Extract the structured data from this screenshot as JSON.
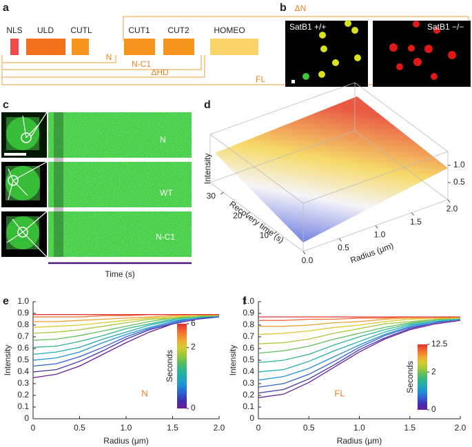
{
  "panel_labels": [
    "a",
    "b",
    "c",
    "d",
    "e",
    "f"
  ],
  "domain_map": {
    "domains": [
      "NLS",
      "ULD",
      "CUTL",
      "CUT1",
      "CUT2",
      "HOMEO"
    ],
    "constructs": [
      "ΔN",
      "N",
      "N-C1",
      "ΔHD",
      "FL"
    ]
  },
  "micrographs": {
    "titles": [
      "SatB1 +/+",
      "SatB1 −/−"
    ]
  },
  "kymographs": {
    "rows": [
      "N",
      "WT",
      "N-C1"
    ],
    "xlabel": "Time (s)"
  },
  "chart_data": [
    {
      "type": "surface3d",
      "xlabel": "Radius (μm)",
      "ylabel": "Recovery time (s)",
      "zlabel": "Intensity",
      "xlim": [
        0,
        2
      ],
      "xticks": [
        {
          "value": 0,
          "label": "0.0"
        },
        0.5,
        {
          "value": 1,
          "label": "1.0"
        },
        1.5,
        {
          "value": 2,
          "label": "2.0"
        }
      ],
      "ylim": [
        0,
        35
      ],
      "yticks": [
        10,
        20,
        30
      ],
      "zlim": [
        0,
        1.4
      ],
      "zticks": [
        0.5,
        {
          "value": 1,
          "label": "1.0"
        }
      ]
    },
    {
      "type": "line",
      "xlabel": "Radius (μm)",
      "ylabel": "Intensity",
      "annotation": "N",
      "xlim": [
        0,
        2
      ],
      "xticks": [
        0,
        0.5,
        {
          "value": 1,
          "label": "1.0"
        },
        1.5,
        {
          "value": 2,
          "label": "2.0"
        }
      ],
      "ylim": [
        0,
        1
      ],
      "yticks": [
        0,
        0.1,
        0.2,
        0.3,
        0.4,
        0.5,
        0.6,
        0.7,
        0.8,
        0.9,
        {
          "value": 1,
          "label": "1.0"
        }
      ],
      "x": [
        0,
        0.25,
        0.5,
        0.75,
        1,
        1.25,
        1.5,
        1.75,
        2
      ],
      "series": [
        {
          "color": "#6a1b9a",
          "values": [
            0.35,
            0.38,
            0.45,
            0.55,
            0.65,
            0.74,
            0.81,
            0.85,
            0.87
          ]
        },
        {
          "color": "#4030b0",
          "values": [
            0.4,
            0.42,
            0.49,
            0.58,
            0.68,
            0.76,
            0.81,
            0.85,
            0.87
          ]
        },
        {
          "color": "#2f5fd0",
          "values": [
            0.45,
            0.47,
            0.53,
            0.61,
            0.7,
            0.77,
            0.82,
            0.86,
            0.87
          ]
        },
        {
          "color": "#1f8fd8",
          "values": [
            0.5,
            0.52,
            0.57,
            0.65,
            0.72,
            0.78,
            0.83,
            0.86,
            0.88
          ]
        },
        {
          "color": "#20aab8",
          "values": [
            0.55,
            0.57,
            0.61,
            0.68,
            0.74,
            0.8,
            0.84,
            0.86,
            0.88
          ]
        },
        {
          "color": "#2fb58a",
          "values": [
            0.61,
            0.62,
            0.66,
            0.71,
            0.77,
            0.81,
            0.85,
            0.87,
            0.88
          ]
        },
        {
          "color": "#5dbf5a",
          "values": [
            0.67,
            0.68,
            0.71,
            0.75,
            0.79,
            0.83,
            0.86,
            0.87,
            0.88
          ]
        },
        {
          "color": "#a6c83a",
          "values": [
            0.73,
            0.74,
            0.76,
            0.79,
            0.82,
            0.85,
            0.86,
            0.88,
            0.88
          ]
        },
        {
          "color": "#d9c92e",
          "values": [
            0.78,
            0.79,
            0.8,
            0.82,
            0.84,
            0.86,
            0.87,
            0.88,
            0.89
          ]
        },
        {
          "color": "#f0a030",
          "values": [
            0.83,
            0.83,
            0.84,
            0.85,
            0.86,
            0.87,
            0.88,
            0.89,
            0.89
          ]
        },
        {
          "color": "#f06a30",
          "values": [
            0.87,
            0.87,
            0.87,
            0.88,
            0.88,
            0.89,
            0.89,
            0.89,
            0.89
          ]
        },
        {
          "color": "#e03030",
          "values": [
            0.89,
            0.89,
            0.89,
            0.89,
            0.89,
            0.89,
            0.89,
            0.89,
            0.89
          ]
        }
      ],
      "colorbar": {
        "label": "Seconds",
        "ticks": [
          0,
          2,
          6
        ]
      }
    },
    {
      "type": "line",
      "xlabel": "Radius (μm)",
      "ylabel": "Intensity",
      "annotation": "FL",
      "xlim": [
        0,
        2
      ],
      "xticks": [
        0,
        0.5,
        {
          "value": 1,
          "label": "1.0"
        },
        1.5,
        {
          "value": 2,
          "label": "2.0"
        }
      ],
      "ylim": [
        0,
        1
      ],
      "yticks": [
        0,
        0.1,
        0.2,
        0.3,
        0.4,
        0.5,
        0.6,
        0.7,
        0.8,
        0.9,
        {
          "value": 1,
          "label": "1.0"
        }
      ],
      "x": [
        0,
        0.25,
        0.5,
        0.75,
        1,
        1.25,
        1.5,
        1.75,
        2
      ],
      "series": [
        {
          "color": "#6a1b9a",
          "values": [
            0.18,
            0.21,
            0.31,
            0.44,
            0.57,
            0.68,
            0.76,
            0.81,
            0.84
          ]
        },
        {
          "color": "#4030b0",
          "values": [
            0.22,
            0.25,
            0.34,
            0.46,
            0.59,
            0.69,
            0.77,
            0.82,
            0.85
          ]
        },
        {
          "color": "#2f5fd0",
          "values": [
            0.27,
            0.3,
            0.38,
            0.49,
            0.61,
            0.71,
            0.78,
            0.82,
            0.85
          ]
        },
        {
          "color": "#1f8fd8",
          "values": [
            0.33,
            0.36,
            0.43,
            0.53,
            0.63,
            0.72,
            0.79,
            0.83,
            0.85
          ]
        },
        {
          "color": "#20aab8",
          "values": [
            0.4,
            0.42,
            0.49,
            0.58,
            0.66,
            0.74,
            0.8,
            0.83,
            0.85
          ]
        },
        {
          "color": "#2fb58a",
          "values": [
            0.48,
            0.5,
            0.55,
            0.63,
            0.7,
            0.76,
            0.81,
            0.84,
            0.86
          ]
        },
        {
          "color": "#5dbf5a",
          "values": [
            0.56,
            0.58,
            0.62,
            0.68,
            0.73,
            0.78,
            0.82,
            0.85,
            0.86
          ]
        },
        {
          "color": "#a6c83a",
          "values": [
            0.64,
            0.65,
            0.68,
            0.73,
            0.77,
            0.81,
            0.83,
            0.85,
            0.86
          ]
        },
        {
          "color": "#d9c92e",
          "values": [
            0.72,
            0.73,
            0.75,
            0.78,
            0.8,
            0.83,
            0.85,
            0.86,
            0.86
          ]
        },
        {
          "color": "#f0a030",
          "values": [
            0.79,
            0.79,
            0.8,
            0.82,
            0.83,
            0.85,
            0.86,
            0.86,
            0.87
          ]
        },
        {
          "color": "#f06a30",
          "values": [
            0.84,
            0.84,
            0.85,
            0.85,
            0.86,
            0.86,
            0.87,
            0.87,
            0.87
          ]
        },
        {
          "color": "#e03030",
          "values": [
            0.87,
            0.87,
            0.87,
            0.87,
            0.87,
            0.87,
            0.87,
            0.87,
            0.87
          ]
        }
      ],
      "colorbar": {
        "label": "Seconds",
        "ticks": [
          0,
          2,
          12.5
        ]
      }
    }
  ]
}
